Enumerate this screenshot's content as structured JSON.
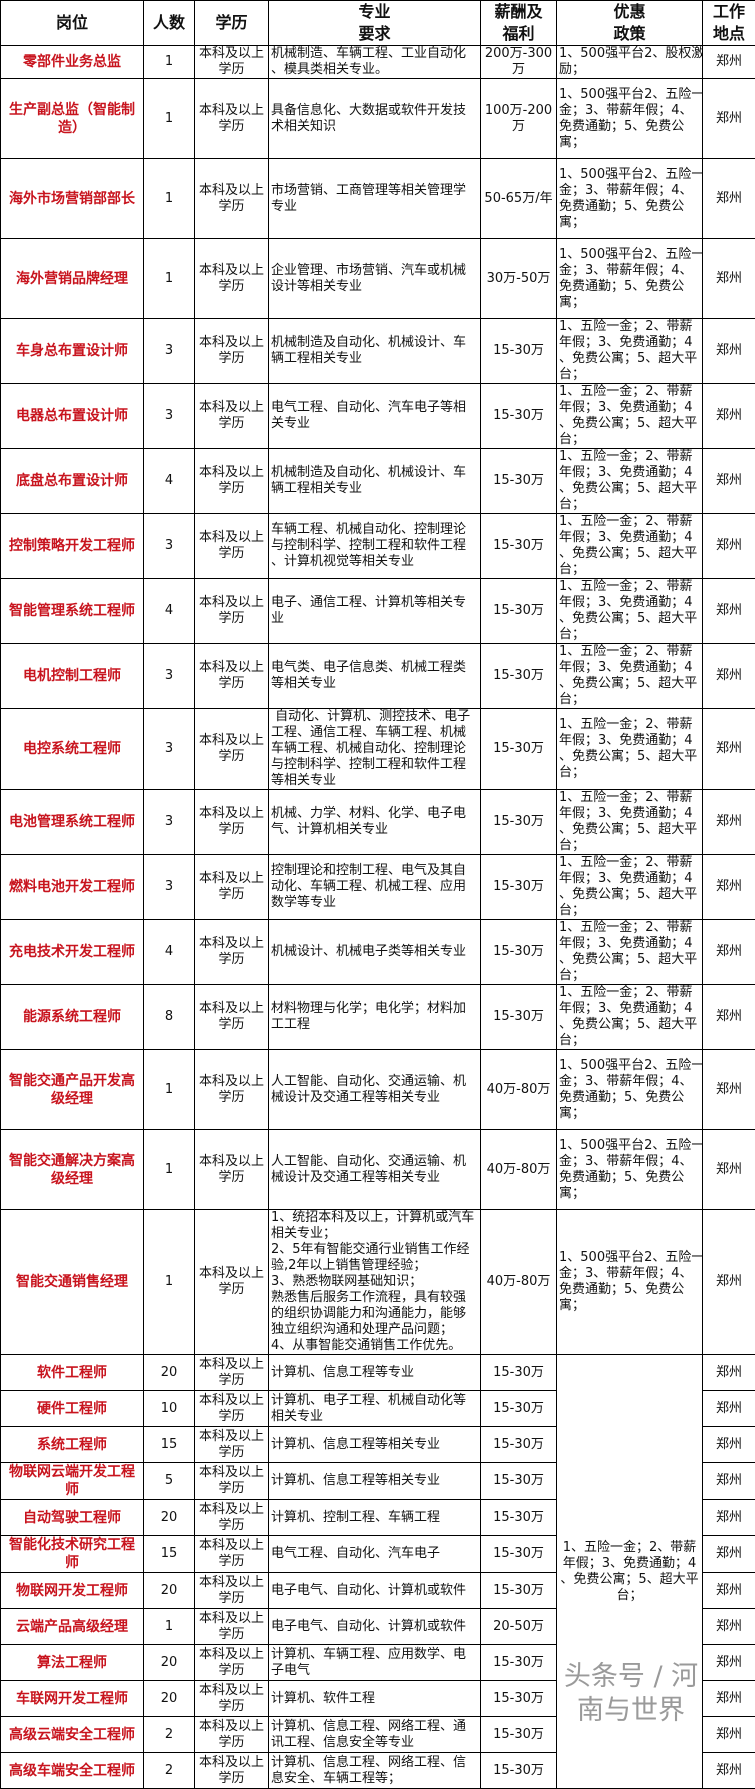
{
  "headers": [
    "岗位",
    "人数",
    "学历",
    "专业\n要求",
    "薪酬及\n福利",
    "优惠\n政策",
    "工作\n地点"
  ],
  "colors": {
    "title_red": "#c8141e",
    "border": "#000000"
  },
  "shared_benefit": "1、五险一金；2、带薪\n年假；3、免费通勤；4\n、免费公寓；5、超大平\n台；",
  "rows": [
    {
      "title": "零部件业务总监",
      "count": "1",
      "edu": "本科及以上\n学历",
      "major": "机械制造、车辆工程、工业自动化\n、模具类相关专业。",
      "salary": "200万-300\n万",
      "benefit": "1、500强平台2、股权激\n励；",
      "location": "郑州"
    },
    {
      "title": "生产副总监（智能制\n造）",
      "count": "1",
      "edu": "本科及以上\n学历",
      "major": "具备信息化、大数据或软件开发技\n术相关知识",
      "salary": "100万-200\n万",
      "benefit": "1、500强平台2、五险一\n金；3、带薪年假；4、\n免费通勤；5、免费公\n寓；",
      "location": "郑州"
    },
    {
      "title": "海外市场营销部部长",
      "count": "1",
      "edu": "本科及以上\n学历",
      "major": "市场营销、工商管理等相关管理学\n专业",
      "salary": "50-65万/年",
      "benefit": "1、500强平台2、五险一\n金；3、带薪年假；4、\n免费通勤；5、免费公\n寓；",
      "location": "郑州"
    },
    {
      "title": "海外营销品牌经理",
      "count": "1",
      "edu": "本科及以上\n学历",
      "major": "企业管理、市场营销、汽车或机械\n设计等相关专业",
      "salary": "30万-50万",
      "benefit": "1、500强平台2、五险一\n金；3、带薪年假；4、\n免费通勤；5、免费公\n寓；",
      "location": "郑州"
    },
    {
      "title": "车身总布置设计师",
      "count": "3",
      "edu": "本科及以上\n学历",
      "major": "机械制造及自动化、机械设计、车\n辆工程相关专业",
      "salary": "15-30万",
      "benefit": "1、五险一金；2、带薪\n年假；3、免费通勤；4\n、免费公寓；5、超大平\n台；",
      "location": "郑州"
    },
    {
      "title": "电器总布置设计师",
      "count": "3",
      "edu": "本科及以上\n学历",
      "major": "电气工程、自动化、汽车电子等相\n关专业",
      "salary": "15-30万",
      "benefit": "1、五险一金；2、带薪\n年假；3、免费通勤；4\n、免费公寓；5、超大平\n台；",
      "location": "郑州"
    },
    {
      "title": "底盘总布置设计师",
      "count": "4",
      "edu": "本科及以上\n学历",
      "major": "机械制造及自动化、机械设计、车\n辆工程相关专业",
      "salary": "15-30万",
      "benefit": "1、五险一金；2、带薪\n年假；3、免费通勤；4\n、免费公寓；5、超大平\n台；",
      "location": "郑州"
    },
    {
      "title": "控制策略开发工程师",
      "count": "3",
      "edu": "本科及以上\n学历",
      "major": "车辆工程、机械自动化、控制理论\n与控制科学、控制工程和软件工程\n、计算机视觉等相关专业",
      "salary": "15-30万",
      "benefit": "1、五险一金；2、带薪\n年假；3、免费通勤；4\n、免费公寓；5、超大平\n台；",
      "location": "郑州"
    },
    {
      "title": "智能管理系统工程师",
      "count": "4",
      "edu": "本科及以上\n学历",
      "major": "电子、通信工程、计算机等相关专\n业",
      "salary": "15-30万",
      "benefit": "1、五险一金；2、带薪\n年假；3、免费通勤；4\n、免费公寓；5、超大平\n台；",
      "location": "郑州"
    },
    {
      "title": "电机控制工程师",
      "count": "3",
      "edu": "本科及以上\n学历",
      "major": "电气类、电子信息类、机械工程类\n等相关专业",
      "salary": "15-30万",
      "benefit": "1、五险一金；2、带薪\n年假；3、免费通勤；4\n、免费公寓；5、超大平\n台；",
      "location": "郑州"
    },
    {
      "title": "电控系统工程师",
      "count": "3",
      "edu": "本科及以上\n学历",
      "major": " 自动化、计算机、测控技术、电子\n工程、通信工程、车辆工程、机械\n车辆工程、机械自动化、控制理论\n与控制科学、控制工程和软件工程\n等相关专业",
      "salary": "15-30万",
      "benefit": "1、五险一金；2、带薪\n年假；3、免费通勤；4\n、免费公寓；5、超大平\n台；",
      "location": "郑州"
    },
    {
      "title": "电池管理系统工程师",
      "count": "3",
      "edu": "本科及以上\n学历",
      "major": "机械、力学、材料、化学、电子电\n气、计算机相关专业",
      "salary": "15-30万",
      "benefit": "1、五险一金；2、带薪\n年假；3、免费通勤；4\n、免费公寓；5、超大平\n台；",
      "location": "郑州"
    },
    {
      "title": "燃料电池开发工程师",
      "count": "3",
      "edu": "本科及以上\n学历",
      "major": "控制理论和控制工程、电气及其自\n动化、车辆工程、机械工程、应用\n数学等专业",
      "salary": "15-30万",
      "benefit": "1、五险一金；2、带薪\n年假；3、免费通勤；4\n、免费公寓；5、超大平\n台；",
      "location": "郑州"
    },
    {
      "title": "充电技术开发工程师",
      "count": "4",
      "edu": "本科及以上\n学历",
      "major": "机械设计、机械电子类等相关专业",
      "salary": "15-30万",
      "benefit": "1、五险一金；2、带薪\n年假；3、免费通勤；4\n、免费公寓；5、超大平\n台；",
      "location": "郑州"
    },
    {
      "title": "能源系统工程师",
      "count": "8",
      "edu": "本科及以上\n学历",
      "major": "材料物理与化学；电化学；材料加\n工工程",
      "salary": "15-30万",
      "benefit": "1、五险一金；2、带薪\n年假；3、免费通勤；4\n、免费公寓；5、超大平\n台；",
      "location": "郑州"
    },
    {
      "title": "智能交通产品开发高\n级经理",
      "count": "1",
      "edu": "本科及以上\n学历",
      "major": "人工智能、自动化、交通运输、机\n械设计及交通工程等相关专业",
      "salary": "40万-80万",
      "benefit": "1、500强平台2、五险一\n金；3、带薪年假；4、\n免费通勤；5、免费公\n寓；",
      "location": "郑州"
    },
    {
      "title": "智能交通解决方案高\n级经理",
      "count": "1",
      "edu": "本科及以上\n学历",
      "major": "人工智能、自动化、交通运输、机\n械设计及交通工程等相关专业",
      "salary": "40万-80万",
      "benefit": "1、500强平台2、五险一\n金；3、带薪年假；4、\n免费通勤；5、免费公\n寓；",
      "location": "郑州"
    },
    {
      "title": "智能交通销售经理",
      "count": "1",
      "edu": "本科及以上\n学历",
      "major": "1、统招本科及以上，计算机或汽车\n相关专业；\n2、5年有智能交通行业销售工作经\n验,2年以上销售管理经验；\n3、熟悉物联网基础知识；\n熟悉售后服务工作流程，具有较强\n的组织协调能力和沟通能力，能够\n独立组织沟通和处理产品问题；\n4、从事智能交通销售工作优先。",
      "salary": "40万-80万",
      "benefit": "1、500强平台2、五险一\n金；3、带薪年假；4、\n免费通勤；5、免费公\n寓；",
      "location": "郑州"
    },
    {
      "title": "软件工程师",
      "count": "20",
      "edu": "本科及以上\n学历",
      "major": "计算机、信息工程等专业",
      "salary": "15-30万",
      "location": "郑州"
    },
    {
      "title": "硬件工程师",
      "count": "10",
      "edu": "本科及以上\n学历",
      "major": "计算机、电子工程、机械自动化等\n相关专业",
      "salary": "15-30万",
      "location": "郑州"
    },
    {
      "title": "系统工程师",
      "count": "15",
      "edu": "本科及以上\n学历",
      "major": "计算机、信息工程等相关专业",
      "salary": "15-30万",
      "location": "郑州"
    },
    {
      "title": "物联网云端开发工程\n师",
      "count": "5",
      "edu": "本科及以上\n学历",
      "major": "计算机、信息工程等相关专业",
      "salary": "15-30万",
      "location": "郑州"
    },
    {
      "title": "自动驾驶工程师",
      "count": "20",
      "edu": "本科及以上\n学历",
      "major": "计算机、控制工程、车辆工程",
      "salary": "15-30万",
      "location": "郑州"
    },
    {
      "title": "智能化技术研究工程\n师",
      "count": "15",
      "edu": "本科及以上\n学历",
      "major": "电气工程、自动化、汽车电子",
      "salary": "15-30万",
      "location": "郑州"
    },
    {
      "title": "物联网开发工程师",
      "count": "20",
      "edu": "本科及以上\n学历",
      "major": "电子电气、自动化、计算机或软件",
      "salary": "15-30万",
      "location": "郑州"
    },
    {
      "title": "云端产品高级经理",
      "count": "1",
      "edu": "本科及以上\n学历",
      "major": "电子电气、自动化、计算机或软件",
      "salary": "20-50万",
      "location": "郑州"
    },
    {
      "title": "算法工程师",
      "count": "20",
      "edu": "本科及以上\n学历",
      "major": "计算机、车辆工程、应用数学、电\n子电气",
      "salary": "15-30万",
      "location": "郑州"
    },
    {
      "title": "车联网开发工程师",
      "count": "20",
      "edu": "本科及以上\n学历",
      "major": "计算机、软件工程",
      "salary": "15-30万",
      "location": "郑州"
    },
    {
      "title": "高级云端安全工程师",
      "count": "2",
      "edu": "本科及以上\n学历",
      "major": "计算机、信息工程、网络工程、通\n讯工程、信息安全等专业",
      "salary": "15-30万",
      "location": "郑州"
    },
    {
      "title": "高级车端安全工程师",
      "count": "2",
      "edu": "本科及以上\n学历",
      "major": "计算机、信息工程、网络工程、信\n息安全、车辆工程等；",
      "salary": "15-30万",
      "location": "郑州"
    }
  ],
  "watermark": "头条号 / 河南与世界"
}
